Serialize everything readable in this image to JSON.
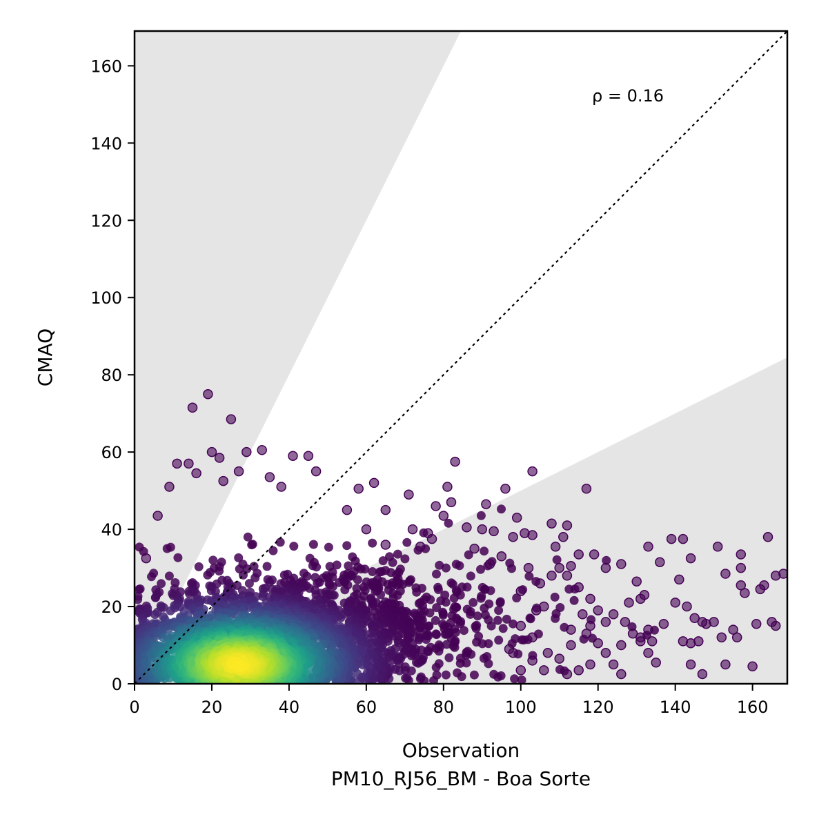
{
  "chart_data": {
    "type": "scatter",
    "title": "",
    "xlabel": "Observation",
    "xlabel_sub": "PM10_RJ56_BM - Boa Sorte",
    "ylabel": "CMAQ",
    "xlim": [
      0,
      169
    ],
    "ylim": [
      0,
      169
    ],
    "xticks": [
      0,
      20,
      40,
      60,
      80,
      100,
      120,
      140,
      160
    ],
    "yticks": [
      0,
      20,
      40,
      60,
      80,
      100,
      120,
      140,
      160
    ],
    "annotation": "ρ = 0.16",
    "reference_line": {
      "style": "dotted",
      "slope": 1,
      "color": "#000000"
    },
    "shaded_regions": [
      {
        "name": "model overestimate (above 2:1)",
        "slope": 2,
        "side": "above",
        "color": "#e5e5e5"
      },
      {
        "name": "model underestimate (below 1:2)",
        "slope": 0.5,
        "side": "below",
        "color": "#e5e5e5"
      }
    ],
    "colormap": "viridis",
    "grid": false,
    "density_core": {
      "x": 27,
      "y": 5
    },
    "outlier_points": [
      [
        15,
        71.5
      ],
      [
        19,
        75
      ],
      [
        25,
        68.5
      ],
      [
        20,
        60
      ],
      [
        29,
        60
      ],
      [
        33,
        60.5
      ],
      [
        41,
        59
      ],
      [
        45,
        59
      ],
      [
        83,
        57.5
      ],
      [
        103,
        55
      ],
      [
        117,
        50.5
      ],
      [
        71,
        49
      ],
      [
        91,
        46.5
      ],
      [
        96,
        50.5
      ],
      [
        81,
        51
      ],
      [
        115,
        33.5
      ],
      [
        119,
        33.5
      ],
      [
        133,
        35.5
      ],
      [
        139,
        37.5
      ],
      [
        142,
        37.5
      ],
      [
        151,
        35.5
      ],
      [
        157,
        33.5
      ],
      [
        164,
        38
      ],
      [
        153,
        28.5
      ],
      [
        141,
        27
      ],
      [
        144,
        32.5
      ],
      [
        136,
        31.5
      ],
      [
        130,
        26.5
      ],
      [
        126,
        31
      ],
      [
        122,
        30
      ],
      [
        168,
        28.5
      ],
      [
        166,
        28
      ],
      [
        157,
        30
      ],
      [
        157,
        25.5
      ],
      [
        158,
        23.5
      ],
      [
        162,
        24.5
      ],
      [
        163,
        25.5
      ],
      [
        150,
        16
      ],
      [
        148,
        15.5
      ],
      [
        147,
        16
      ],
      [
        145,
        17
      ],
      [
        143,
        20
      ],
      [
        140,
        21
      ],
      [
        137,
        15.5
      ],
      [
        142,
        11
      ],
      [
        144,
        10.5
      ],
      [
        146,
        11
      ],
      [
        152,
        12
      ],
      [
        156,
        12
      ],
      [
        155,
        14
      ],
      [
        161,
        15.5
      ],
      [
        165,
        16
      ],
      [
        166,
        15
      ],
      [
        160,
        4.5
      ],
      [
        153,
        5
      ],
      [
        147,
        2.5
      ],
      [
        144,
        5
      ],
      [
        135,
        5.5
      ],
      [
        126,
        2.5
      ],
      [
        124,
        5
      ],
      [
        122,
        8
      ],
      [
        118,
        5
      ],
      [
        115,
        3.5
      ],
      [
        112,
        2.5
      ],
      [
        106,
        3.5
      ],
      [
        110,
        6.5
      ],
      [
        113,
        10
      ],
      [
        117,
        13
      ],
      [
        120,
        10.5
      ],
      [
        122,
        16
      ],
      [
        124,
        18
      ],
      [
        127,
        16
      ],
      [
        128,
        21
      ],
      [
        131,
        22
      ],
      [
        132,
        23
      ],
      [
        133,
        14
      ],
      [
        134,
        11
      ],
      [
        131,
        12
      ],
      [
        133,
        8
      ],
      [
        111,
        38
      ],
      [
        112,
        41
      ],
      [
        108,
        41.5
      ],
      [
        109,
        35.5
      ],
      [
        101,
        39
      ],
      [
        99,
        43
      ],
      [
        98,
        38
      ],
      [
        103,
        38.5
      ],
      [
        110,
        30
      ],
      [
        113,
        30.5
      ],
      [
        105,
        26
      ],
      [
        102,
        30
      ],
      [
        108,
        28
      ],
      [
        112,
        28
      ],
      [
        115,
        25
      ],
      [
        118,
        22
      ],
      [
        120,
        19
      ],
      [
        116,
        18
      ],
      [
        118,
        15
      ],
      [
        113,
        14
      ],
      [
        126,
        10
      ],
      [
        129,
        13
      ],
      [
        131,
        11
      ],
      [
        100,
        24
      ],
      [
        104,
        19
      ],
      [
        106,
        20
      ],
      [
        103,
        12
      ],
      [
        100,
        15
      ],
      [
        98,
        8
      ],
      [
        97,
        9
      ],
      [
        100,
        3.5
      ],
      [
        103,
        6
      ],
      [
        107,
        8
      ],
      [
        92,
        31
      ],
      [
        95,
        33
      ],
      [
        88,
        35
      ],
      [
        90,
        40
      ],
      [
        86,
        40.5
      ],
      [
        93,
        39.5
      ],
      [
        3,
        32.5
      ],
      [
        6,
        43.5
      ],
      [
        9,
        51
      ],
      [
        11,
        57
      ],
      [
        14,
        57
      ],
      [
        16,
        54.5
      ],
      [
        22,
        58.5
      ],
      [
        23,
        52.5
      ],
      [
        35,
        53.5
      ],
      [
        38,
        51
      ],
      [
        47,
        55
      ],
      [
        27,
        55
      ],
      [
        62,
        52
      ],
      [
        58,
        50.5
      ],
      [
        55,
        45
      ],
      [
        65,
        45
      ],
      [
        72,
        40
      ],
      [
        76,
        39
      ],
      [
        78,
        46
      ],
      [
        80,
        43.5
      ],
      [
        82,
        47
      ],
      [
        77,
        37.5
      ],
      [
        74,
        35.5
      ],
      [
        60,
        40
      ],
      [
        65,
        36
      ]
    ]
  }
}
